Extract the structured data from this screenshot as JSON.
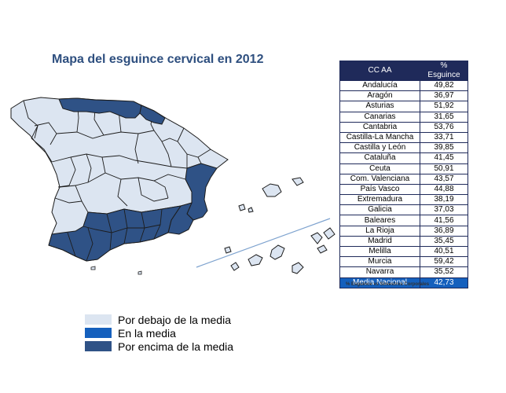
{
  "map": {
    "title": "Mapa del esguince cervical en 2012",
    "colors": {
      "below": "#dce5f1",
      "average": "#1560bd",
      "above": "#2f5286",
      "border": "#1c1c1c",
      "line": "#7ea3cf"
    }
  },
  "table": {
    "headers": [
      "CC AA",
      "% Esguince"
    ],
    "rows": [
      [
        "Andalucía",
        "49,82"
      ],
      [
        "Aragón",
        "36,97"
      ],
      [
        "Asturias",
        "51,92"
      ],
      [
        "Canarias",
        "31,65"
      ],
      [
        "Cantabria",
        "53,76"
      ],
      [
        "Castilla-La Mancha",
        "33,71"
      ],
      [
        "Castilla y León",
        "39,85"
      ],
      [
        "Cataluña",
        "41,45"
      ],
      [
        "Ceuta",
        "50,91"
      ],
      [
        "Com. Valenciana",
        "43,57"
      ],
      [
        "País Vasco",
        "44,88"
      ],
      [
        "Extremadura",
        "38,19"
      ],
      [
        "Galicia",
        "37,03"
      ],
      [
        "Baleares",
        "41,56"
      ],
      [
        "La Rioja",
        "36,89"
      ],
      [
        "Madrid",
        "35,45"
      ],
      [
        "Melilla",
        "40,51"
      ],
      [
        "Murcia",
        "59,42"
      ],
      [
        "Navarra",
        "35,52"
      ]
    ],
    "total": [
      "Media Nacional",
      "42,73"
    ],
    "note": "% Esguince vs Siniestros Corporales"
  },
  "legend": {
    "items": [
      {
        "label": "Por debajo de la media",
        "color": "#dce5f1"
      },
      {
        "label": "En la media",
        "color": "#1560bd"
      },
      {
        "label": "Por encima de la media",
        "color": "#2f5286"
      }
    ]
  }
}
